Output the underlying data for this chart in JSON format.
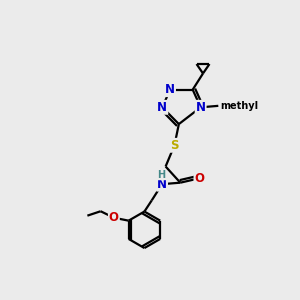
{
  "bg_color": "#ebebeb",
  "atom_colors": {
    "C": "#000000",
    "N": "#0000cc",
    "O": "#cc0000",
    "S": "#bbaa00",
    "H": "#448888"
  },
  "lw": 1.6,
  "fs": 8.5,
  "xlim": [
    0,
    10
  ],
  "ylim": [
    0,
    10
  ]
}
